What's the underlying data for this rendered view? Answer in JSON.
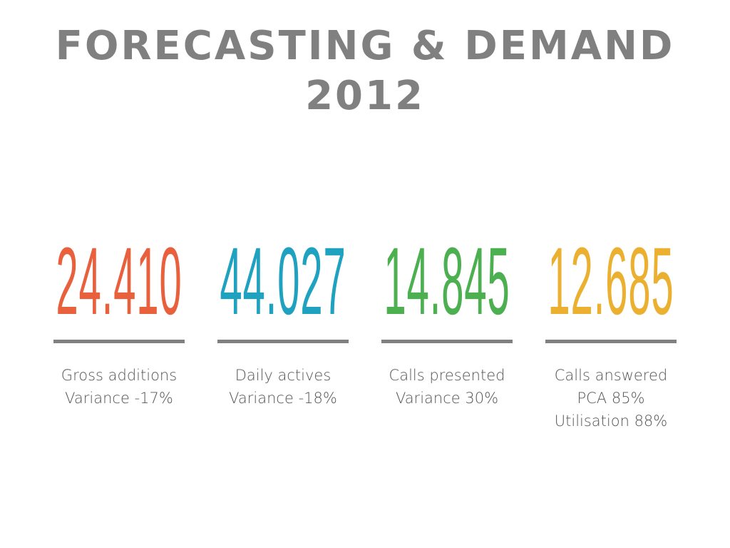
{
  "slide": {
    "title": "FORECASTING & DEMAND 2012",
    "stats": [
      {
        "value": "24.410",
        "color": "#e8603c",
        "lines": [
          "Gross additions",
          "Variance -17%"
        ]
      },
      {
        "value": "44.027",
        "color": "#1fa1c0",
        "lines": [
          "Daily actives",
          "Variance -18%"
        ]
      },
      {
        "value": "14.845",
        "color": "#4caf50",
        "lines": [
          "Calls presented",
          "Variance 30%"
        ]
      },
      {
        "value": "12.685",
        "color": "#ebb030",
        "lines": [
          "Calls answered",
          "PCA 85%",
          "Utilisation 88%"
        ]
      }
    ]
  }
}
